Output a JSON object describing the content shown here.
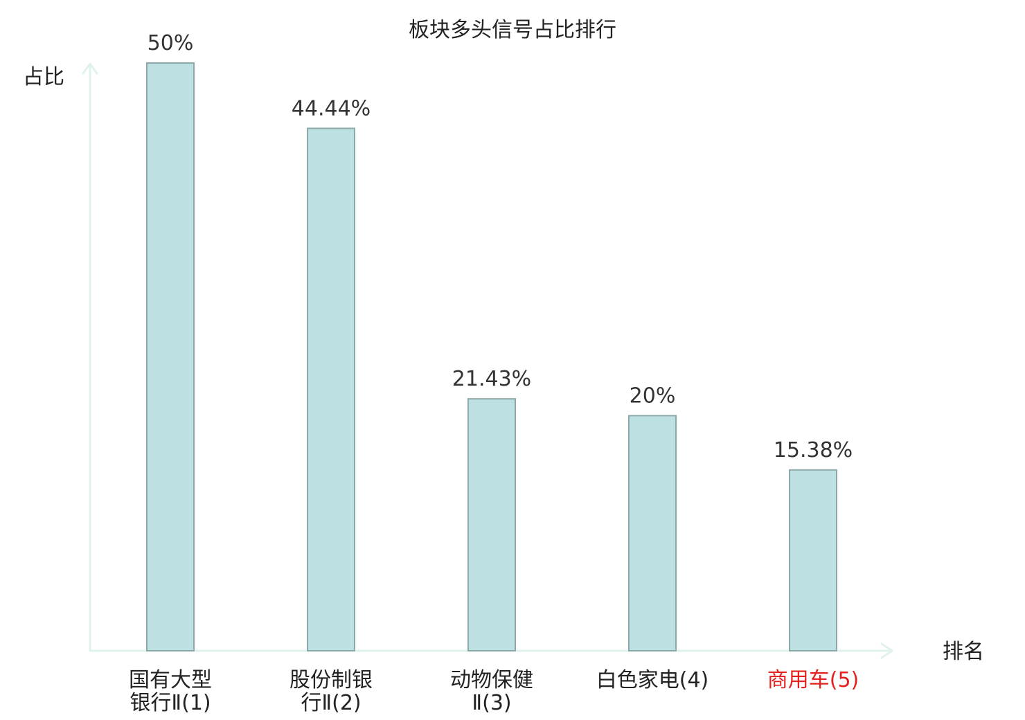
{
  "chart_data": {
    "type": "bar",
    "title": "板块多头信号占比排行",
    "xlabel": "排名",
    "ylabel": "占比",
    "categories": [
      "国有大型\n银行Ⅱ(1)",
      "股份制银\n行Ⅱ(2)",
      "动物保健\nⅡ(3)",
      "白色家电(4)",
      "商用车(5)"
    ],
    "values": [
      50,
      44.44,
      21.43,
      20,
      15.38
    ],
    "data_labels": [
      "50%",
      "44.44%",
      "21.43%",
      "20%",
      "15.38%"
    ],
    "ylim": [
      0,
      50
    ],
    "grid": false,
    "colors": {
      "bar_fill": "#bde0e2",
      "bar_stroke": "#8ea9a9",
      "axis": "#dff2ee",
      "value_label": "#333333"
    },
    "label_colors": [
      "#222222",
      "#222222",
      "#222222",
      "#222222",
      "#e3221f"
    ]
  }
}
